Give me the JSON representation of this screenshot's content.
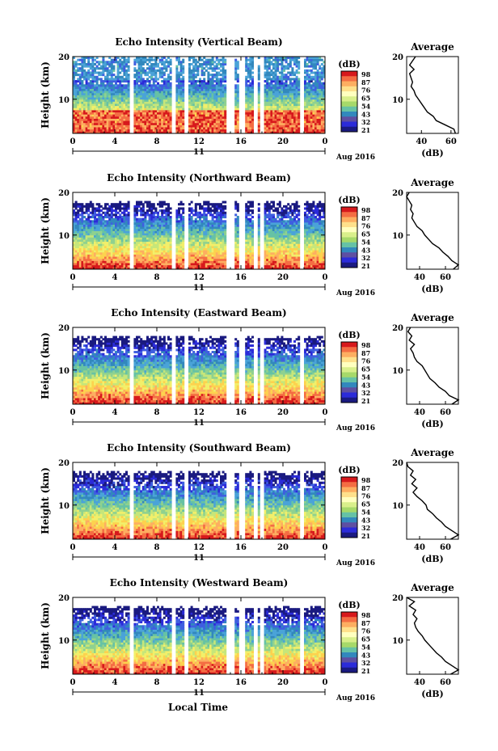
{
  "figure": {
    "xlabel_bottom": "Local Time",
    "date_label": "Aug 2016",
    "day_label": "11"
  },
  "colorbar": {
    "unit": "(dB)",
    "ticks": [
      "98",
      "87",
      "76",
      "65",
      "54",
      "43",
      "32",
      "21"
    ],
    "colors": [
      "#d7191c",
      "#f46d43",
      "#fdae61",
      "#fee08b",
      "#ffffbf",
      "#d9ef8b",
      "#a6d96a",
      "#66c2a5",
      "#3288bd",
      "#5e4fa2",
      "#2b2bd9",
      "#1a1a80"
    ]
  },
  "chart_data": [
    {
      "type": "heatmap",
      "title": "Echo Intensity (Vertical Beam)",
      "ylabel": "Height (km)",
      "xlim": [
        0,
        24
      ],
      "ylim": [
        2,
        20
      ],
      "xticks": [
        "0",
        "4",
        "8",
        "12",
        "16",
        "20",
        "0"
      ],
      "yticks": [
        "20",
        "10"
      ],
      "gaps": [
        [
          5.6,
          5.8
        ],
        [
          9.4,
          9.8
        ],
        [
          10.6,
          10.9
        ],
        [
          14.7,
          15.4
        ],
        [
          15.9,
          16.3
        ],
        [
          17.2,
          17.5
        ],
        [
          17.8,
          18.1
        ],
        [
          21.7,
          21.9
        ]
      ],
      "profile": {
        "title": "Average",
        "xlabel": "(dB)",
        "xticks": [
          "40",
          "60"
        ],
        "xlim": [
          30,
          65
        ],
        "ylim": [
          2,
          20
        ],
        "heights": [
          2,
          3,
          4,
          5,
          6,
          7,
          8,
          9,
          10,
          11,
          12,
          13,
          14,
          15,
          16,
          17,
          18,
          19,
          20
        ],
        "values": [
          63,
          62,
          56,
          50,
          48,
          44,
          42,
          40,
          38,
          36,
          35,
          33,
          34,
          33,
          32,
          35,
          32,
          34,
          36
        ]
      }
    },
    {
      "type": "heatmap",
      "title": "Echo Intensity (Northward Beam)",
      "ylabel": "Height (km)",
      "xlim": [
        0,
        24
      ],
      "ylim": [
        2,
        20
      ],
      "xticks": [
        "0",
        "4",
        "8",
        "12",
        "16",
        "20",
        "0"
      ],
      "yticks": [
        "20",
        "10"
      ],
      "gaps": [
        [
          5.6,
          5.8
        ],
        [
          9.4,
          9.8
        ],
        [
          10.6,
          10.9
        ],
        [
          14.7,
          15.4
        ],
        [
          15.9,
          16.3
        ],
        [
          17.2,
          17.5
        ],
        [
          17.8,
          18.1
        ],
        [
          21.7,
          21.9
        ]
      ],
      "profile": {
        "title": "Average",
        "xlabel": "(dB)",
        "xticks": [
          "40",
          "60"
        ],
        "xlim": [
          30,
          70
        ],
        "ylim": [
          2,
          20
        ],
        "heights": [
          2,
          3,
          4,
          5,
          6,
          7,
          8,
          9,
          10,
          11,
          12,
          13,
          14,
          15,
          16,
          17,
          18,
          19,
          20
        ],
        "values": [
          66,
          70,
          65,
          62,
          58,
          55,
          50,
          47,
          44,
          42,
          38,
          36,
          34,
          35,
          33,
          34,
          32,
          30,
          32
        ]
      }
    },
    {
      "type": "heatmap",
      "title": "Echo Intensity (Eastward Beam)",
      "ylabel": "Height (km)",
      "xlim": [
        0,
        24
      ],
      "ylim": [
        2,
        20
      ],
      "xticks": [
        "0",
        "4",
        "8",
        "12",
        "16",
        "20",
        "0"
      ],
      "yticks": [
        "20",
        "10"
      ],
      "gaps": [
        [
          5.6,
          5.8
        ],
        [
          9.4,
          9.8
        ],
        [
          10.6,
          10.9
        ],
        [
          14.7,
          15.4
        ],
        [
          15.9,
          16.3
        ],
        [
          17.2,
          17.5
        ],
        [
          17.8,
          18.1
        ],
        [
          21.7,
          21.9
        ]
      ],
      "profile": {
        "title": "Average",
        "xlabel": "(dB)",
        "xticks": [
          "40",
          "60"
        ],
        "xlim": [
          30,
          70
        ],
        "ylim": [
          2,
          20
        ],
        "heights": [
          2,
          3,
          4,
          5,
          6,
          7,
          8,
          9,
          10,
          11,
          12,
          13,
          14,
          15,
          16,
          17,
          18,
          19,
          20
        ],
        "values": [
          65,
          70,
          63,
          60,
          55,
          52,
          48,
          46,
          44,
          42,
          38,
          36,
          35,
          33,
          36,
          32,
          34,
          31,
          33
        ]
      }
    },
    {
      "type": "heatmap",
      "title": "Echo Intensity (Southward Beam)",
      "ylabel": "Height (km)",
      "xlim": [
        0,
        24
      ],
      "ylim": [
        2,
        20
      ],
      "xticks": [
        "0",
        "4",
        "8",
        "12",
        "16",
        "20",
        "0"
      ],
      "yticks": [
        "20",
        "10"
      ],
      "gaps": [
        [
          5.6,
          5.8
        ],
        [
          9.4,
          9.8
        ],
        [
          10.6,
          10.9
        ],
        [
          14.7,
          15.4
        ],
        [
          15.9,
          16.3
        ],
        [
          17.2,
          17.5
        ],
        [
          17.8,
          18.1
        ],
        [
          21.7,
          21.9
        ]
      ],
      "profile": {
        "title": "Average",
        "xlabel": "(dB)",
        "xticks": [
          "40",
          "60"
        ],
        "xlim": [
          30,
          70
        ],
        "ylim": [
          2,
          20
        ],
        "heights": [
          2,
          3,
          4,
          5,
          6,
          7,
          8,
          9,
          10,
          11,
          12,
          13,
          14,
          15,
          16,
          17,
          18,
          19,
          20
        ],
        "values": [
          64,
          70,
          65,
          60,
          57,
          53,
          50,
          46,
          45,
          42,
          38,
          35,
          38,
          34,
          37,
          33,
          35,
          31,
          30
        ]
      }
    },
    {
      "type": "heatmap",
      "title": "Echo Intensity (Westward Beam)",
      "ylabel": "Height (km)",
      "xlim": [
        0,
        24
      ],
      "ylim": [
        2,
        20
      ],
      "xticks": [
        "0",
        "4",
        "8",
        "12",
        "16",
        "20",
        "0"
      ],
      "yticks": [
        "20",
        "10"
      ],
      "gaps": [
        [
          5.6,
          5.8
        ],
        [
          9.4,
          9.8
        ],
        [
          10.6,
          10.9
        ],
        [
          14.7,
          15.4
        ],
        [
          15.9,
          16.3
        ],
        [
          17.2,
          17.5
        ],
        [
          17.8,
          18.1
        ],
        [
          21.7,
          21.9
        ]
      ],
      "profile": {
        "title": "Average",
        "xlabel": "(dB)",
        "xticks": [
          "40",
          "60"
        ],
        "xlim": [
          30,
          70
        ],
        "ylim": [
          2,
          20
        ],
        "heights": [
          2,
          3,
          4,
          5,
          6,
          7,
          8,
          9,
          10,
          11,
          12,
          13,
          14,
          15,
          16,
          17,
          18,
          19,
          20
        ],
        "values": [
          64,
          70,
          65,
          60,
          57,
          53,
          50,
          47,
          44,
          42,
          39,
          37,
          36,
          38,
          35,
          37,
          32,
          36,
          30
        ]
      }
    }
  ]
}
